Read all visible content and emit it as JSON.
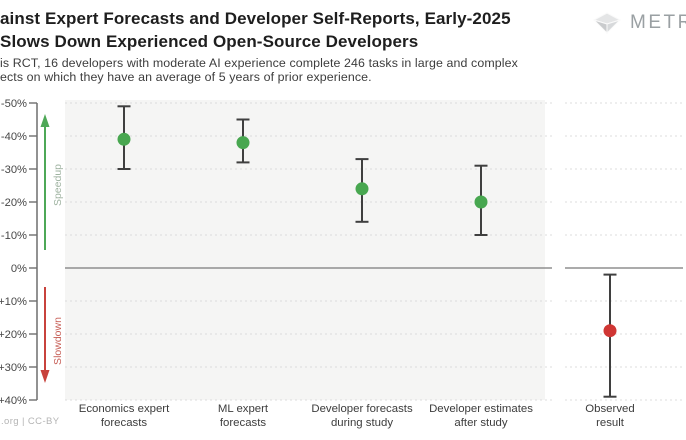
{
  "header": {
    "title_line1": "ainst Expert Forecasts and Developer Self-Reports, Early-2025",
    "title_line2": "Slows Down Experienced Open-Source Developers",
    "subtitle_line1": "is RCT, 16 developers with moderate AI experience complete 246 tasks in large and complex",
    "subtitle_line2": "ects on which they have an average of 5 years of prior experience.",
    "logo_text": "METR"
  },
  "footer": {
    "attribution": ".org | CC-BY"
  },
  "chart_data": {
    "type": "scatter",
    "subtype": "point-estimates-with-error-bars",
    "orientation_note": "y-axis inverted: negative % (speedup) plotted upward, positive % (slowdown) downward; 0% reference line in middle",
    "y_ticks": [
      {
        "value": -50,
        "label": "-50%"
      },
      {
        "value": -40,
        "label": "-40%"
      },
      {
        "value": -30,
        "label": "-30%"
      },
      {
        "value": -20,
        "label": "-20%"
      },
      {
        "value": -10,
        "label": "-10%"
      },
      {
        "value": 0,
        "label": "0%"
      },
      {
        "value": 10,
        "label": "+10%"
      },
      {
        "value": 20,
        "label": "+20%"
      },
      {
        "value": 30,
        "label": "+30%"
      },
      {
        "value": 40,
        "label": "+40%"
      }
    ],
    "ylim": [
      -50,
      40
    ],
    "grid": "dashed horizontal line every 10%, solid gray line at 0%",
    "legend_position": "none",
    "axis_annotations": {
      "speedup_label": "Speedup",
      "slowdown_label": "Slowdown"
    },
    "points": [
      {
        "category": [
          "Economics expert",
          "forecasts"
        ],
        "mean": -39,
        "ci_low": -49,
        "ci_high": -30,
        "group": "forecast"
      },
      {
        "category": [
          "ML expert",
          "forecasts"
        ],
        "mean": -38,
        "ci_low": -45,
        "ci_high": -32,
        "group": "forecast"
      },
      {
        "category": [
          "Developer forecasts",
          "during study"
        ],
        "mean": -24,
        "ci_low": -33,
        "ci_high": -14,
        "group": "forecast"
      },
      {
        "category": [
          "Developer estimates",
          "after study"
        ],
        "mean": -20,
        "ci_low": -31,
        "ci_high": -10,
        "group": "forecast"
      },
      {
        "category": [
          "Observed",
          "result"
        ],
        "mean": 19,
        "ci_low": 2,
        "ci_high": 39,
        "group": "observed"
      }
    ]
  },
  "colors": {
    "forecast_dot": "#48a750",
    "observed_dot": "#d03634",
    "speedup_arrow": "#4ea857",
    "slowdown_arrow": "#c8423c",
    "speedup_label_text": "#9fb3a1",
    "slowdown_label_text": "#c75f57",
    "error_bar": "#3f3f3f",
    "gridline": "#dcdcdc",
    "zero_line": "#8f8f8f",
    "axis": "#6e6e6e",
    "tick_label": "#474747",
    "panel_background": "#f5f5f4"
  }
}
